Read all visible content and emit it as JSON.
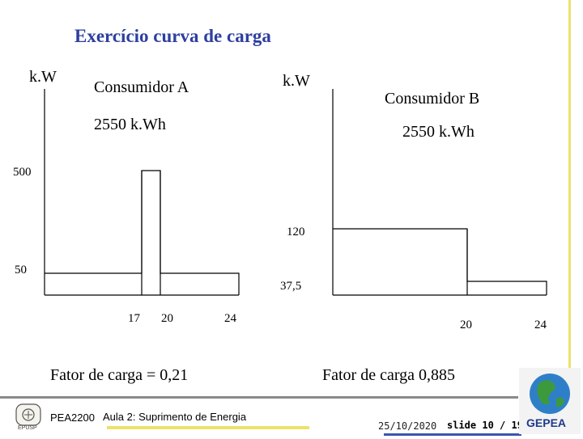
{
  "slide": {
    "title": "Exercício curva de carga",
    "footer": {
      "course": "PEA2200",
      "lecture": "Aula 2: Suprimento de Energia",
      "date": "25/10/2020",
      "slide_label": "slide 10 / 19",
      "logo_left_text": "EPUSP",
      "logo_right_text": "GEPEA"
    }
  },
  "consumer_a": {
    "name": "Consumidor A",
    "energy": "2550 k.Wh",
    "y_unit": "k.W",
    "load_factor": "Fator de carga = 0,21",
    "y_labels": [
      "500",
      "50"
    ],
    "x_labels": [
      "17",
      "20",
      "24"
    ]
  },
  "consumer_b": {
    "name": "Consumidor B",
    "energy": "2550 k.Wh",
    "y_unit": "k.W",
    "load_factor": "Fator de carga 0,885",
    "y_labels": [
      "120",
      "37,5"
    ],
    "x_labels": [
      "20",
      "24"
    ]
  },
  "chart_data": [
    {
      "type": "line",
      "title": "Consumidor A",
      "ylabel": "k.W",
      "step_profile": [
        {
          "from_hour": 0,
          "to_hour": 17,
          "kW": 50
        },
        {
          "from_hour": 17,
          "to_hour": 20,
          "kW": 500
        },
        {
          "from_hour": 20,
          "to_hour": 24,
          "kW": 50
        }
      ],
      "x_ticks": [
        17,
        20,
        24
      ],
      "y_ticks": [
        50,
        500
      ]
    },
    {
      "type": "line",
      "title": "Consumidor B",
      "ylabel": "k.W",
      "step_profile": [
        {
          "from_hour": 0,
          "to_hour": 20,
          "kW": 120
        },
        {
          "from_hour": 20,
          "to_hour": 24,
          "kW": 37.5
        }
      ],
      "x_ticks": [
        20,
        24
      ],
      "y_ticks": [
        37.5,
        120
      ]
    }
  ],
  "colors": {
    "title": "#2e3f9e",
    "accent_yellow": "#e9e36a",
    "accent_blue": "#3a55b0"
  }
}
